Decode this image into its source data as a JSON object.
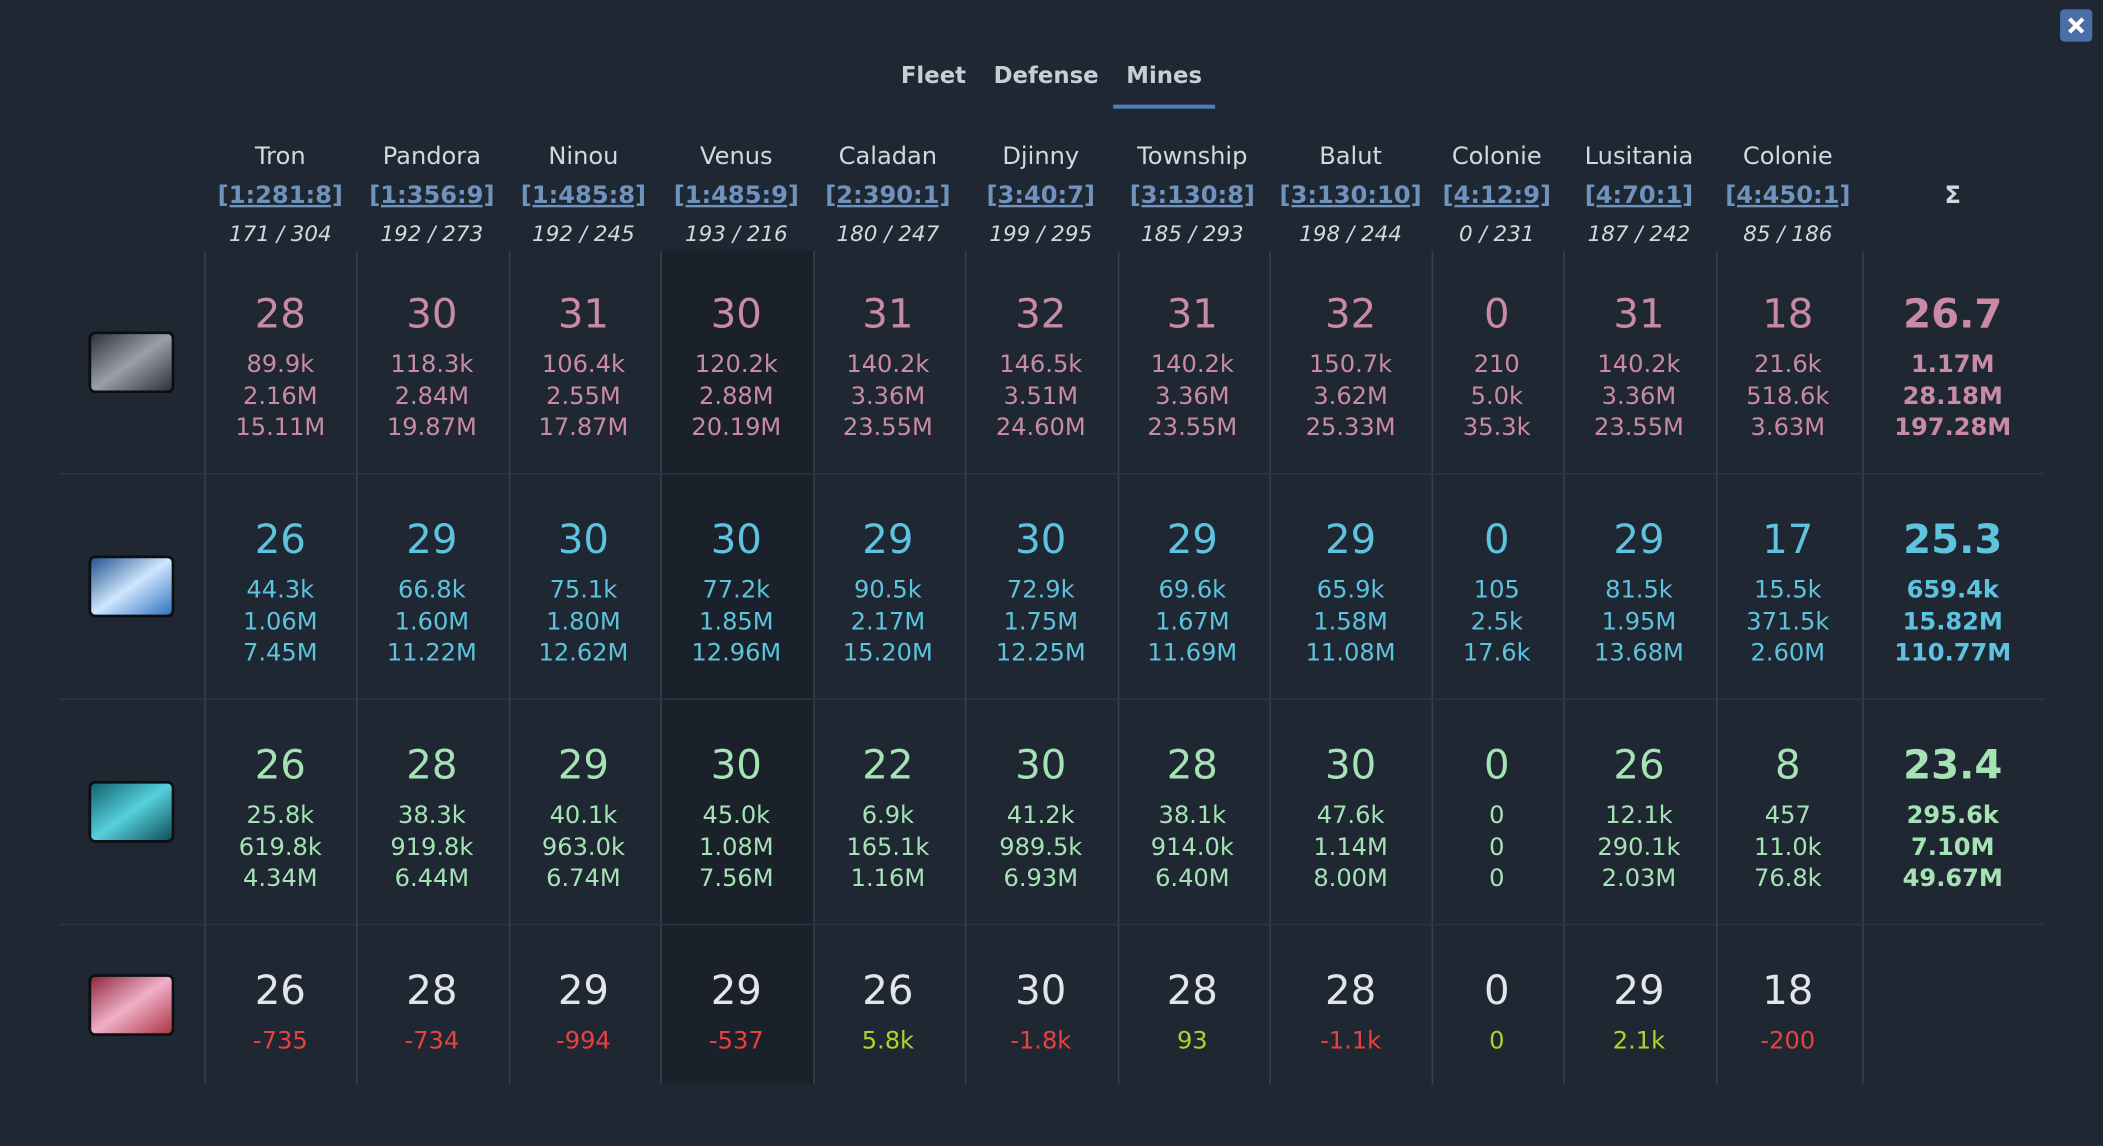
{
  "tabs": [
    "Fleet",
    "Defense",
    "Mines"
  ],
  "sum_header": "Σ",
  "planets": [
    {
      "name": "Tron",
      "coords": "[1:281:8]",
      "fields": "171 / 304"
    },
    {
      "name": "Pandora",
      "coords": "[1:356:9]",
      "fields": "192 / 273"
    },
    {
      "name": "Ninou",
      "coords": "[1:485:8]",
      "fields": "192 / 245"
    },
    {
      "name": "Venus",
      "coords": "[1:485:9]",
      "fields": "193 / 216"
    },
    {
      "name": "Caladan",
      "coords": "[2:390:1]",
      "fields": "180 / 247"
    },
    {
      "name": "Djinny",
      "coords": "[3:40:7]",
      "fields": "199 / 295"
    },
    {
      "name": "Township",
      "coords": "[3:130:8]",
      "fields": "185 / 293"
    },
    {
      "name": "Balut",
      "coords": "[3:130:10]",
      "fields": "198 / 244"
    },
    {
      "name": "Colonie",
      "coords": "[4:12:9]",
      "fields": "0 / 231"
    },
    {
      "name": "Lusitania",
      "coords": "[4:70:1]",
      "fields": "187 / 242"
    },
    {
      "name": "Colonie",
      "coords": "[4:450:1]",
      "fields": "85 / 186"
    }
  ],
  "rows": [
    {
      "color": "#c98aa6",
      "cells": [
        {
          "level": 28,
          "lines": [
            "89.9k",
            "2.16M",
            "15.11M"
          ]
        },
        {
          "level": 30,
          "lines": [
            "118.3k",
            "2.84M",
            "19.87M"
          ]
        },
        {
          "level": 31,
          "lines": [
            "106.4k",
            "2.55M",
            "17.87M"
          ]
        },
        {
          "level": 30,
          "lines": [
            "120.2k",
            "2.88M",
            "20.19M"
          ]
        },
        {
          "level": 31,
          "lines": [
            "140.2k",
            "3.36M",
            "23.55M"
          ]
        },
        {
          "level": 32,
          "lines": [
            "146.5k",
            "3.51M",
            "24.60M"
          ]
        },
        {
          "level": 31,
          "lines": [
            "140.2k",
            "3.36M",
            "23.55M"
          ]
        },
        {
          "level": 32,
          "lines": [
            "150.7k",
            "3.62M",
            "25.33M"
          ]
        },
        {
          "level": 0,
          "lines": [
            "210",
            "5.0k",
            "35.3k"
          ]
        },
        {
          "level": 31,
          "lines": [
            "140.2k",
            "3.36M",
            "23.55M"
          ]
        },
        {
          "level": 18,
          "lines": [
            "21.6k",
            "518.6k",
            "3.63M"
          ]
        }
      ],
      "sum": {
        "level": 26.7,
        "lines": [
          "1.17M",
          "28.18M",
          "197.28M"
        ]
      }
    },
    {
      "color": "#5ec3df",
      "cells": [
        {
          "level": 26,
          "lines": [
            "44.3k",
            "1.06M",
            "7.45M"
          ]
        },
        {
          "level": 29,
          "lines": [
            "66.8k",
            "1.60M",
            "11.22M"
          ]
        },
        {
          "level": 30,
          "lines": [
            "75.1k",
            "1.80M",
            "12.62M"
          ]
        },
        {
          "level": 30,
          "lines": [
            "77.2k",
            "1.85M",
            "12.96M"
          ]
        },
        {
          "level": 29,
          "lines": [
            "90.5k",
            "2.17M",
            "15.20M"
          ]
        },
        {
          "level": 30,
          "lines": [
            "72.9k",
            "1.75M",
            "12.25M"
          ]
        },
        {
          "level": 29,
          "lines": [
            "69.6k",
            "1.67M",
            "11.69M"
          ]
        },
        {
          "level": 29,
          "lines": [
            "65.9k",
            "1.58M",
            "11.08M"
          ]
        },
        {
          "level": 0,
          "lines": [
            "105",
            "2.5k",
            "17.6k"
          ]
        },
        {
          "level": 29,
          "lines": [
            "81.5k",
            "1.95M",
            "13.68M"
          ]
        },
        {
          "level": 17,
          "lines": [
            "15.5k",
            "371.5k",
            "2.60M"
          ]
        }
      ],
      "sum": {
        "level": 25.3,
        "lines": [
          "659.4k",
          "15.82M",
          "110.77M"
        ]
      }
    },
    {
      "color": "#a6e3b4",
      "cells": [
        {
          "level": 26,
          "lines": [
            "25.8k",
            "619.8k",
            "4.34M"
          ]
        },
        {
          "level": 28,
          "lines": [
            "38.3k",
            "919.8k",
            "6.44M"
          ]
        },
        {
          "level": 29,
          "lines": [
            "40.1k",
            "963.0k",
            "6.74M"
          ]
        },
        {
          "level": 30,
          "lines": [
            "45.0k",
            "1.08M",
            "7.56M"
          ]
        },
        {
          "level": 22,
          "lines": [
            "6.9k",
            "165.1k",
            "1.16M"
          ]
        },
        {
          "level": 30,
          "lines": [
            "41.2k",
            "989.5k",
            "6.93M"
          ]
        },
        {
          "level": 28,
          "lines": [
            "38.1k",
            "914.0k",
            "6.40M"
          ]
        },
        {
          "level": 30,
          "lines": [
            "47.6k",
            "1.14M",
            "8.00M"
          ]
        },
        {
          "level": 0,
          "lines": [
            "0",
            "0",
            "0"
          ]
        },
        {
          "level": 26,
          "lines": [
            "12.1k",
            "290.1k",
            "2.03M"
          ]
        },
        {
          "level": 8,
          "lines": [
            "457",
            "11.0k",
            "76.8k"
          ]
        }
      ],
      "sum": {
        "level": 23.4,
        "lines": [
          "295.6k",
          "7.10M",
          "49.67M"
        ]
      }
    },
    {
      "color": "#e2e5ea",
      "value_colors": {
        "negative": "#e8413f",
        "positive": "#aed42a"
      },
      "cells": [
        {
          "level": 26,
          "lines": [
            "-735"
          ]
        },
        {
          "level": 28,
          "lines": [
            "-734"
          ]
        },
        {
          "level": 29,
          "lines": [
            "-994"
          ]
        },
        {
          "level": 29,
          "lines": [
            "-537"
          ]
        },
        {
          "level": 26,
          "lines": [
            "5.8k"
          ]
        },
        {
          "level": 30,
          "lines": [
            "-1.8k"
          ]
        },
        {
          "level": 28,
          "lines": [
            "93"
          ]
        },
        {
          "level": 28,
          "lines": [
            "-1.1k"
          ]
        },
        {
          "level": 0,
          "lines": [
            "0"
          ]
        },
        {
          "level": 29,
          "lines": [
            "2.1k"
          ]
        },
        {
          "level": 18,
          "lines": [
            "-200"
          ]
        }
      ]
    }
  ]
}
